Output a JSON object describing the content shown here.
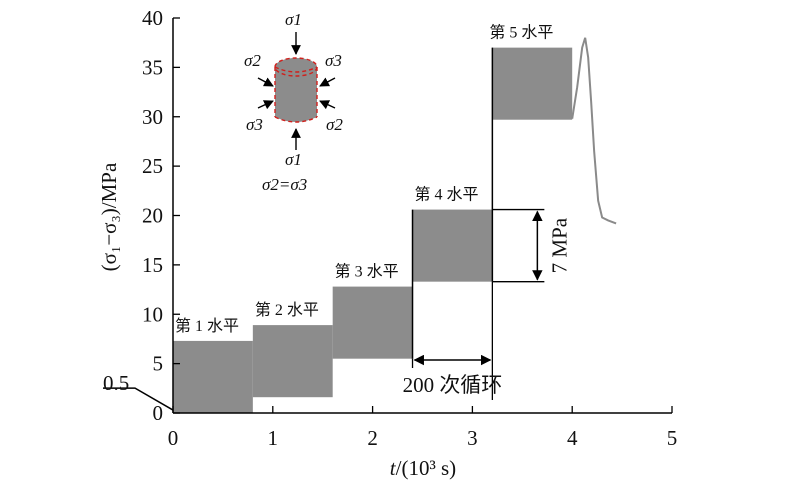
{
  "chart_data": {
    "type": "area",
    "x_axis": {
      "label_prefix": "t",
      "label_suffix": "/(10³ s)",
      "range": [
        0,
        5
      ],
      "ticks": [
        0,
        1,
        2,
        3,
        4,
        5
      ],
      "tick_labels": [
        "0",
        "1",
        "2",
        "3",
        "4",
        "5"
      ]
    },
    "y_axis": {
      "label": "(σ₁−σ₃)/MPa",
      "range": [
        0,
        40
      ],
      "ticks": [
        0,
        5,
        10,
        15,
        20,
        25,
        30,
        35,
        40
      ],
      "tick_labels": [
        "0",
        "5",
        "10",
        "15",
        "20",
        "25",
        "30",
        "35",
        "40"
      ]
    },
    "grid": false,
    "initial_load": {
      "label": "0.5",
      "value": 0.5
    },
    "levels": [
      {
        "label": "第 1 水平",
        "x_start": 0.0,
        "x_end": 0.8,
        "y_low": 0.0,
        "y_high": 7.3
      },
      {
        "label": "第 2 水平",
        "x_start": 0.8,
        "x_end": 1.6,
        "y_low": 1.6,
        "y_high": 8.9
      },
      {
        "label": "第 3 水平",
        "x_start": 1.6,
        "x_end": 2.4,
        "y_low": 5.5,
        "y_high": 12.8
      },
      {
        "label": "第 4 水平",
        "x_start": 2.4,
        "x_end": 3.2,
        "y_low": 13.3,
        "y_high": 20.6
      },
      {
        "label": "第 5 水平",
        "x_start": 3.2,
        "x_end": 4.0,
        "y_low": 29.7,
        "y_high": 37.0
      }
    ],
    "failure_curve": {
      "x": [
        4.0,
        4.05,
        4.1,
        4.13,
        4.16,
        4.19,
        4.22,
        4.26,
        4.3,
        4.36,
        4.44
      ],
      "y": [
        29.8,
        33.0,
        37.0,
        38.0,
        36.0,
        31.5,
        26.5,
        21.5,
        19.8,
        19.5,
        19.2
      ]
    },
    "annotations": {
      "amplitude": {
        "label": "7 MPa",
        "y_low": 13.3,
        "y_high": 20.6
      },
      "cycles": {
        "label": "200 次循环",
        "x_start": 2.4,
        "x_end": 3.2
      }
    },
    "inset": {
      "sigma1_top": "σ1",
      "sigma1_bottom": "σ1",
      "sigma2_left": "σ2",
      "sigma3_right": "σ3",
      "sigma3_left": "σ3",
      "sigma2_right": "σ2",
      "equation": "σ2=σ3",
      "colors": {
        "specimen": "#8c8c8c",
        "dashed_edge": "#d0201c"
      }
    },
    "colors": {
      "block": "#8c8c8c",
      "curve": "#8a8a8a",
      "axis": "#000000"
    }
  }
}
